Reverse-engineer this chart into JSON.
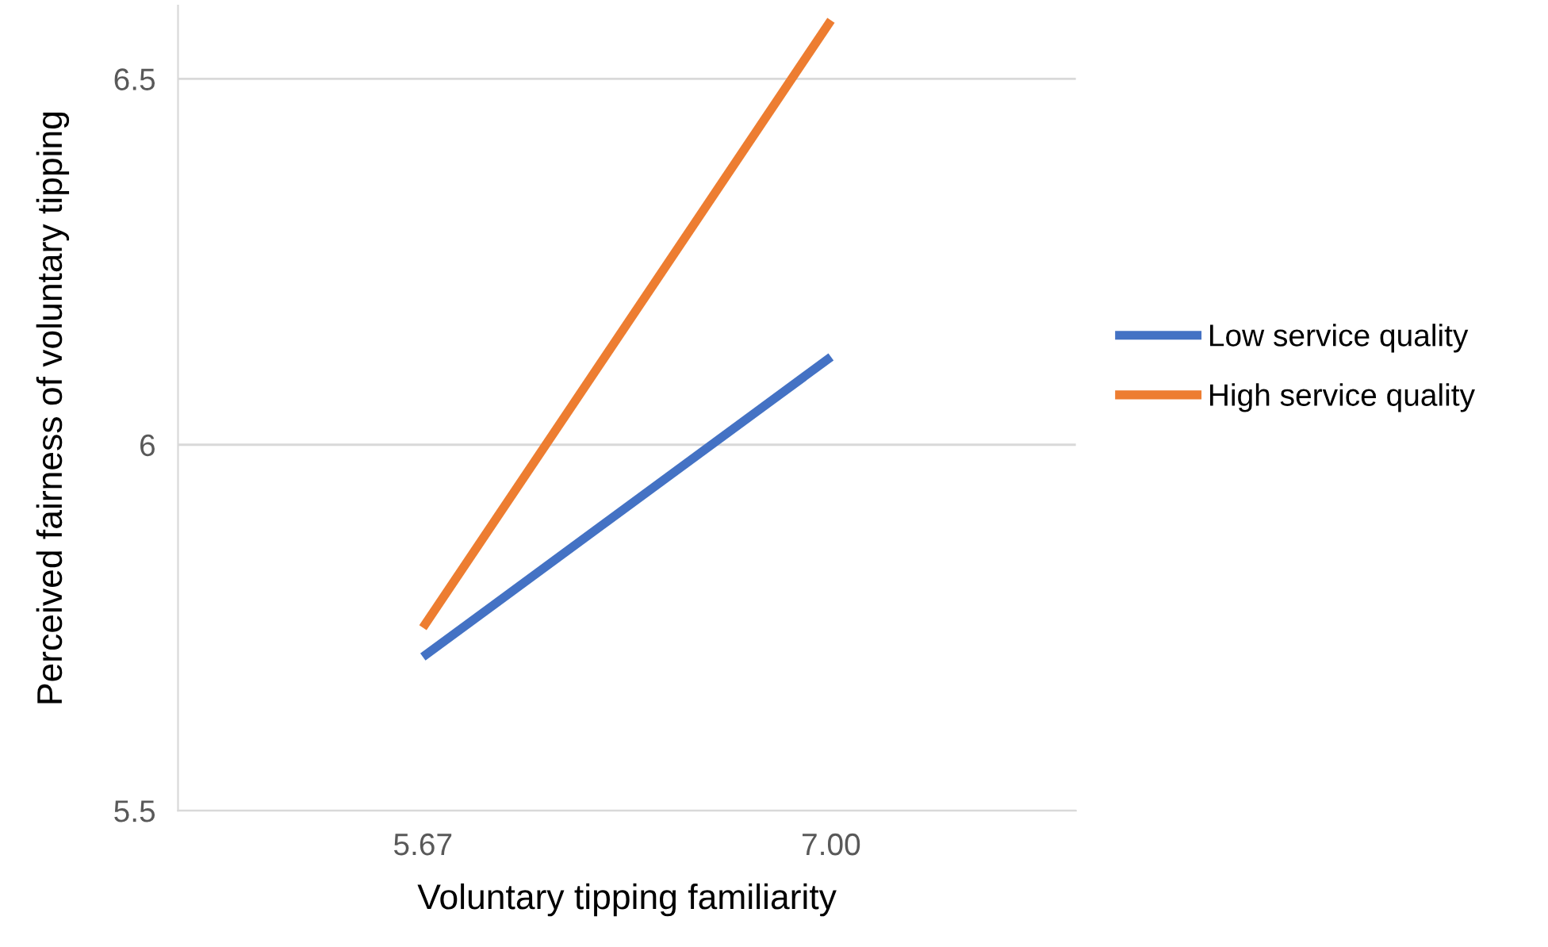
{
  "chart_data": {
    "type": "line",
    "xlabel": "Voluntary tipping familiarity",
    "ylabel": "Perceived fairness of voluntary tipping",
    "categories": [
      "5.67",
      "7.00"
    ],
    "series": [
      {
        "name": "Low service quality",
        "color": "#4472c4",
        "values": [
          5.71,
          6.12
        ]
      },
      {
        "name": "High service quality",
        "color": "#ed7d31",
        "values": [
          5.75,
          6.58
        ]
      }
    ],
    "ylim": [
      5.5,
      6.6
    ],
    "yticks": [
      5.5,
      6,
      6.5
    ],
    "grid": "y",
    "legend": "right",
    "marker": "none",
    "line_style": "solid"
  }
}
